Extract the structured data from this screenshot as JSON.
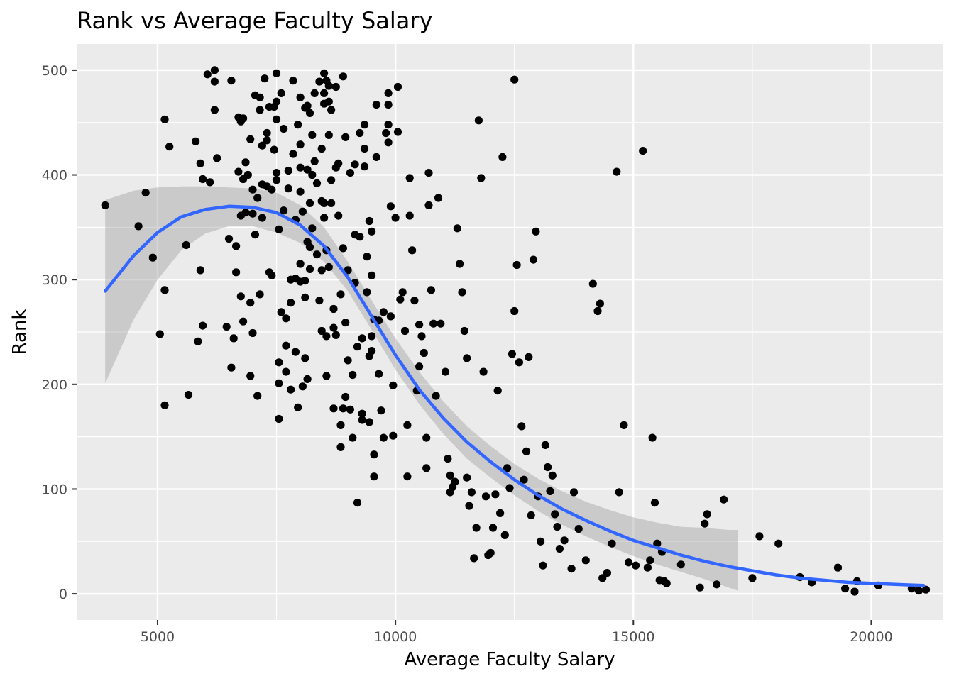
{
  "chart_data": {
    "type": "scatter",
    "title": "Rank vs Average Faculty Salary",
    "xlabel": "Average Faculty Salary",
    "ylabel": "Rank",
    "xlim": [
      3300,
      21500
    ],
    "ylim": [
      -25,
      525
    ],
    "x_ticks": [
      5000,
      10000,
      15000,
      20000
    ],
    "x_tick_labels": [
      "5000",
      "10000",
      "15000",
      "20000"
    ],
    "y_ticks": [
      0,
      100,
      200,
      300,
      400,
      500
    ],
    "y_tick_labels": [
      "0",
      "100",
      "200",
      "300",
      "400",
      "500"
    ],
    "grid": true,
    "legend": "none",
    "colors": {
      "panel": "#ebebeb",
      "grid": "#ffffff",
      "points": "#000000",
      "smooth_line": "#3366ff",
      "ribbon": "#999999"
    },
    "points": [
      [
        3900,
        371
      ],
      [
        4600,
        351
      ],
      [
        4750,
        383
      ],
      [
        4900,
        321
      ],
      [
        5050,
        248
      ],
      [
        5150,
        453
      ],
      [
        5150,
        180
      ],
      [
        5150,
        290
      ],
      [
        5250,
        427
      ],
      [
        5600,
        333
      ],
      [
        5650,
        190
      ],
      [
        5800,
        432
      ],
      [
        5850,
        241
      ],
      [
        5900,
        411
      ],
      [
        5900,
        309
      ],
      [
        5950,
        256
      ],
      [
        5950,
        396
      ],
      [
        6050,
        496
      ],
      [
        6100,
        393
      ],
      [
        6200,
        500
      ],
      [
        6200,
        462
      ],
      [
        6200,
        489
      ],
      [
        6250,
        416
      ],
      [
        6450,
        255
      ],
      [
        6500,
        339
      ],
      [
        6550,
        490
      ],
      [
        6550,
        216
      ],
      [
        6600,
        244
      ],
      [
        6650,
        307
      ],
      [
        6650,
        332
      ],
      [
        6700,
        455
      ],
      [
        6700,
        403
      ],
      [
        6750,
        284
      ],
      [
        6750,
        361
      ],
      [
        6750,
        451
      ],
      [
        6800,
        260
      ],
      [
        6800,
        454
      ],
      [
        6800,
        396
      ],
      [
        6850,
        412
      ],
      [
        6850,
        364
      ],
      [
        6900,
        400
      ],
      [
        6950,
        208
      ],
      [
        6950,
        278
      ],
      [
        6950,
        434
      ],
      [
        7000,
        249
      ],
      [
        7000,
        386
      ],
      [
        7000,
        363
      ],
      [
        7050,
        476
      ],
      [
        7050,
        343
      ],
      [
        7100,
        189
      ],
      [
        7100,
        378
      ],
      [
        7150,
        462
      ],
      [
        7150,
        474
      ],
      [
        7150,
        286
      ],
      [
        7200,
        428
      ],
      [
        7200,
        391
      ],
      [
        7200,
        359
      ],
      [
        7250,
        492
      ],
      [
        7300,
        440
      ],
      [
        7300,
        433
      ],
      [
        7300,
        389
      ],
      [
        7350,
        307
      ],
      [
        7350,
        465
      ],
      [
        7400,
        304
      ],
      [
        7400,
        386
      ],
      [
        7450,
        424
      ],
      [
        7450,
        465
      ],
      [
        7500,
        497
      ],
      [
        7500,
        470
      ],
      [
        7500,
        453
      ],
      [
        7500,
        402
      ],
      [
        7500,
        395
      ],
      [
        7550,
        348
      ],
      [
        7550,
        221
      ],
      [
        7550,
        201
      ],
      [
        7550,
        167
      ],
      [
        7600,
        269
      ],
      [
        7600,
        478
      ],
      [
        7650,
        444
      ],
      [
        7650,
        366
      ],
      [
        7700,
        237
      ],
      [
        7700,
        263
      ],
      [
        7700,
        212
      ],
      [
        7750,
        387
      ],
      [
        7750,
        404
      ],
      [
        7800,
        278
      ],
      [
        7800,
        300
      ],
      [
        7800,
        195
      ],
      [
        7850,
        490
      ],
      [
        7850,
        420
      ],
      [
        7900,
        301
      ],
      [
        7900,
        357
      ],
      [
        7900,
        231
      ],
      [
        7950,
        178
      ],
      [
        7950,
        448
      ],
      [
        8000,
        474
      ],
      [
        8000,
        429
      ],
      [
        8000,
        407
      ],
      [
        8000,
        384
      ],
      [
        8000,
        315
      ],
      [
        8000,
        298
      ],
      [
        8050,
        365
      ],
      [
        8050,
        198
      ],
      [
        8100,
        283
      ],
      [
        8100,
        225
      ],
      [
        8100,
        299
      ],
      [
        8100,
        464
      ],
      [
        8150,
        466
      ],
      [
        8150,
        405
      ],
      [
        8150,
        336
      ],
      [
        8150,
        205
      ],
      [
        8200,
        310
      ],
      [
        8200,
        331
      ],
      [
        8200,
        373
      ],
      [
        8200,
        459
      ],
      [
        8250,
        438
      ],
      [
        8250,
        400
      ],
      [
        8250,
        349
      ],
      [
        8300,
        413
      ],
      [
        8300,
        478
      ],
      [
        8350,
        392
      ],
      [
        8350,
        324
      ],
      [
        8400,
        489
      ],
      [
        8400,
        280
      ],
      [
        8450,
        309
      ],
      [
        8450,
        251
      ],
      [
        8450,
        425
      ],
      [
        8450,
        375
      ],
      [
        8500,
        497
      ],
      [
        8500,
        478
      ],
      [
        8500,
        468
      ],
      [
        8500,
        373
      ],
      [
        8500,
        359
      ],
      [
        8550,
        490
      ],
      [
        8550,
        328
      ],
      [
        8550,
        246
      ],
      [
        8550,
        208
      ],
      [
        8600,
        485
      ],
      [
        8600,
        470
      ],
      [
        8600,
        438
      ],
      [
        8600,
        312
      ],
      [
        8650,
        462
      ],
      [
        8650,
        395
      ],
      [
        8650,
        373
      ],
      [
        8700,
        254
      ],
      [
        8700,
        272
      ],
      [
        8700,
        177
      ],
      [
        8750,
        484
      ],
      [
        8750,
        407
      ],
      [
        8750,
        247
      ],
      [
        8800,
        411
      ],
      [
        8800,
        361
      ],
      [
        8850,
        286
      ],
      [
        8850,
        161
      ],
      [
        8850,
        140
      ],
      [
        8900,
        494
      ],
      [
        8900,
        330
      ],
      [
        8900,
        177
      ],
      [
        8950,
        436
      ],
      [
        8950,
        259
      ],
      [
        8950,
        188
      ],
      [
        9000,
        309
      ],
      [
        9000,
        223
      ],
      [
        9050,
        402
      ],
      [
        9050,
        176
      ],
      [
        9100,
        149
      ],
      [
        9100,
        209
      ],
      [
        9150,
        410
      ],
      [
        9150,
        343
      ],
      [
        9150,
        297
      ],
      [
        9200,
        87
      ],
      [
        9200,
        236
      ],
      [
        9250,
        440
      ],
      [
        9250,
        341
      ],
      [
        9300,
        244
      ],
      [
        9300,
        172
      ],
      [
        9300,
        166
      ],
      [
        9350,
        448
      ],
      [
        9350,
        408
      ],
      [
        9350,
        425
      ],
      [
        9400,
        322
      ],
      [
        9400,
        288
      ],
      [
        9450,
        356
      ],
      [
        9450,
        227
      ],
      [
        9450,
        164
      ],
      [
        9500,
        346
      ],
      [
        9500,
        304
      ],
      [
        9500,
        246
      ],
      [
        9500,
        232
      ],
      [
        9550,
        262
      ],
      [
        9550,
        133
      ],
      [
        9550,
        112
      ],
      [
        9600,
        467
      ],
      [
        9600,
        417
      ],
      [
        9650,
        210
      ],
      [
        9650,
        261
      ],
      [
        9700,
        175
      ],
      [
        9750,
        149
      ],
      [
        9750,
        269
      ],
      [
        9800,
        440
      ],
      [
        9850,
        478
      ],
      [
        9850,
        467
      ],
      [
        9850,
        448
      ],
      [
        9850,
        431
      ],
      [
        9900,
        370
      ],
      [
        9900,
        265
      ],
      [
        9950,
        199
      ],
      [
        9950,
        151
      ],
      [
        10000,
        359
      ],
      [
        10050,
        484
      ],
      [
        10050,
        441
      ],
      [
        10100,
        281
      ],
      [
        10150,
        288
      ],
      [
        10200,
        251
      ],
      [
        10250,
        161
      ],
      [
        10250,
        112
      ],
      [
        10300,
        397
      ],
      [
        10300,
        361
      ],
      [
        10350,
        328
      ],
      [
        10400,
        280
      ],
      [
        10450,
        194
      ],
      [
        10500,
        257
      ],
      [
        10500,
        217
      ],
      [
        10550,
        246
      ],
      [
        10600,
        230
      ],
      [
        10650,
        149
      ],
      [
        10650,
        120
      ],
      [
        10700,
        402
      ],
      [
        10700,
        371
      ],
      [
        10750,
        290
      ],
      [
        10800,
        258
      ],
      [
        10850,
        189
      ],
      [
        10900,
        378
      ],
      [
        10950,
        258
      ],
      [
        11050,
        212
      ],
      [
        11100,
        129
      ],
      [
        11150,
        113
      ],
      [
        11150,
        97
      ],
      [
        11200,
        102
      ],
      [
        11250,
        107
      ],
      [
        11300,
        349
      ],
      [
        11350,
        315
      ],
      [
        11400,
        288
      ],
      [
        11450,
        251
      ],
      [
        11500,
        225
      ],
      [
        11500,
        111
      ],
      [
        11550,
        84
      ],
      [
        11600,
        97
      ],
      [
        11650,
        34
      ],
      [
        11700,
        63
      ],
      [
        11750,
        452
      ],
      [
        11800,
        397
      ],
      [
        11850,
        212
      ],
      [
        11900,
        93
      ],
      [
        11950,
        37
      ],
      [
        12000,
        39
      ],
      [
        12050,
        63
      ],
      [
        12100,
        95
      ],
      [
        12150,
        194
      ],
      [
        12200,
        77
      ],
      [
        12250,
        417
      ],
      [
        12300,
        56
      ],
      [
        12350,
        120
      ],
      [
        12400,
        101
      ],
      [
        12450,
        229
      ],
      [
        12500,
        491
      ],
      [
        12500,
        270
      ],
      [
        12550,
        314
      ],
      [
        12600,
        221
      ],
      [
        12650,
        160
      ],
      [
        12700,
        109
      ],
      [
        12750,
        136
      ],
      [
        12800,
        226
      ],
      [
        12850,
        75
      ],
      [
        12900,
        319
      ],
      [
        12950,
        346
      ],
      [
        13000,
        93
      ],
      [
        13050,
        50
      ],
      [
        13100,
        27
      ],
      [
        13150,
        142
      ],
      [
        13200,
        121
      ],
      [
        13250,
        98
      ],
      [
        13300,
        113
      ],
      [
        13350,
        76
      ],
      [
        13400,
        64
      ],
      [
        13450,
        43
      ],
      [
        13550,
        51
      ],
      [
        13700,
        24
      ],
      [
        13750,
        97
      ],
      [
        13850,
        62
      ],
      [
        14000,
        32
      ],
      [
        14150,
        296
      ],
      [
        14250,
        270
      ],
      [
        14300,
        277
      ],
      [
        14350,
        15
      ],
      [
        14450,
        20
      ],
      [
        14550,
        48
      ],
      [
        14650,
        403
      ],
      [
        14700,
        97
      ],
      [
        14800,
        161
      ],
      [
        14900,
        30
      ],
      [
        15050,
        27
      ],
      [
        15200,
        423
      ],
      [
        15300,
        25
      ],
      [
        15350,
        32
      ],
      [
        15400,
        149
      ],
      [
        15450,
        87
      ],
      [
        15500,
        48
      ],
      [
        15550,
        13
      ],
      [
        15600,
        40
      ],
      [
        15650,
        12
      ],
      [
        15700,
        10
      ],
      [
        16000,
        28
      ],
      [
        16400,
        6
      ],
      [
        16500,
        67
      ],
      [
        16550,
        76
      ],
      [
        16750,
        9
      ],
      [
        16900,
        90
      ],
      [
        17500,
        15
      ],
      [
        17650,
        55
      ],
      [
        18050,
        48
      ],
      [
        18500,
        16
      ],
      [
        18750,
        11
      ],
      [
        19300,
        25
      ],
      [
        19450,
        5
      ],
      [
        19650,
        2
      ],
      [
        19700,
        12
      ],
      [
        20150,
        8
      ],
      [
        20850,
        5
      ],
      [
        21000,
        3
      ],
      [
        21150,
        4
      ]
    ],
    "smooth": {
      "method": "loess",
      "x": [
        3900,
        4500,
        5000,
        5500,
        6000,
        6500,
        7000,
        7500,
        8000,
        8500,
        9000,
        9500,
        10000,
        10500,
        11000,
        11500,
        12000,
        12500,
        13000,
        13500,
        14000,
        14500,
        15000,
        15500,
        16000,
        16500,
        17000,
        17500,
        18000,
        18500,
        19000,
        19500,
        20000,
        20500,
        21100
      ],
      "y": [
        289,
        323,
        345,
        360,
        367,
        370,
        369,
        364,
        352,
        332,
        302,
        265,
        228,
        195,
        168,
        145,
        126,
        109,
        94,
        81,
        70,
        60,
        51,
        44,
        37,
        31,
        26,
        22,
        18,
        15,
        13,
        11,
        10,
        9,
        8
      ],
      "ribbon_x": [
        3900,
        4500,
        5000,
        5500,
        6000,
        6500,
        7000,
        7500,
        8000,
        8500,
        9000,
        9500,
        10000,
        10500,
        11000,
        11500,
        12000,
        12500,
        13000,
        13500,
        14000,
        14500,
        15000,
        15500,
        16000,
        16500,
        17000,
        17200
      ],
      "ribbon_lower": [
        201,
        262,
        300,
        328,
        344,
        351,
        351,
        345,
        335,
        317,
        289,
        252,
        214,
        181,
        153,
        129,
        111,
        94,
        79,
        66,
        55,
        45,
        36,
        28,
        21,
        14,
        6,
        3
      ],
      "ribbon_upper": [
        376,
        385,
        388,
        389,
        389,
        388,
        387,
        383,
        371,
        350,
        317,
        280,
        244,
        212,
        184,
        160,
        141,
        124,
        110,
        98,
        88,
        80,
        73,
        68,
        64,
        63,
        61,
        61
      ]
    }
  }
}
